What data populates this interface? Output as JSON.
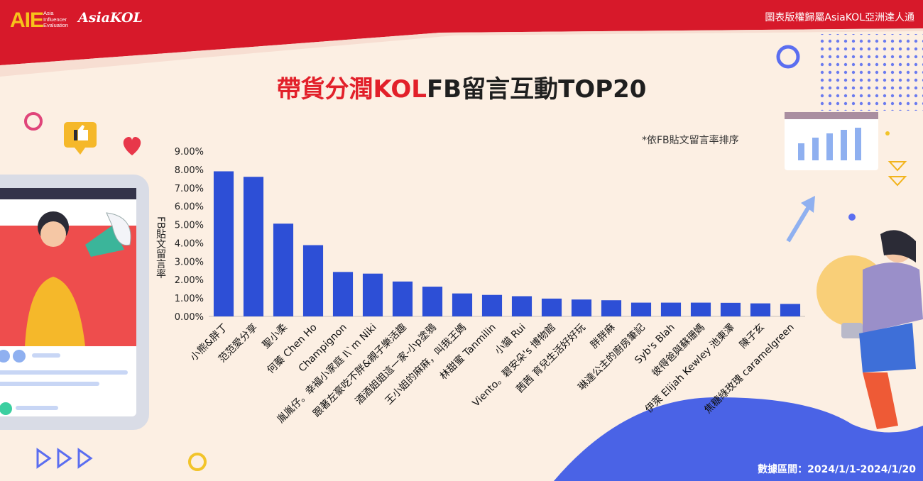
{
  "header": {
    "logo_aie": "AIE",
    "logo_aie_sub": [
      "Asia",
      "Influencer",
      "Evaluation"
    ],
    "logo_brand": "AsiaKOL",
    "copyright": "圖表版權歸屬AsiaKOL亞洲達人通"
  },
  "title": {
    "part1": "帶貨分潤KOL",
    "part2": "FB留言互動TOP20"
  },
  "note": "*依FB貼文留言率排序",
  "footer": {
    "data_range": "數據區間：2024/1/1-2024/1/20"
  },
  "colors": {
    "bar": "#2d4fd6",
    "header_red": "#d7192a",
    "header_dark": "#2a2a35",
    "title_red": "#e2202a",
    "background": "#fcefe3",
    "wave_blue": "#4a63e6"
  },
  "chart_data": {
    "type": "bar",
    "ylabel": "FB貼文留言率",
    "ylim": [
      0,
      9
    ],
    "yticks": [
      "0.00%",
      "1.00%",
      "2.00%",
      "3.00%",
      "4.00%",
      "5.00%",
      "6.00%",
      "7.00%",
      "8.00%",
      "9.00%"
    ],
    "grid": false,
    "categories": [
      "小熊&胖丁",
      "范范愛分享",
      "聖小柔",
      "何蓁 Chen Ho",
      "Champignon",
      "胤胤仔。幸福小家庭 I\\`m Niki",
      "跟著左豪吃不胖&親子樂活趣",
      "酒酒姐姐這一家-小p塗鴉",
      "王小姐的麻麻，叫我王媽",
      "林甜蜜 Tanmilin",
      "小貓 Rui",
      "Viento。碧安朵's 博物館",
      "茜茜 育兒生活好好玩",
      "胖胖麻",
      "琳達公主的廚房筆記",
      "Syb's Blah",
      "彼得爸與蘇珊媽",
      "伊萊 Elijah Kewley 池東澤",
      "陳子玄",
      "焦糖綠玫瑰 caramelgreen"
    ],
    "values": [
      7.9,
      7.6,
      5.05,
      3.88,
      2.42,
      2.33,
      1.9,
      1.62,
      1.25,
      1.17,
      1.1,
      0.97,
      0.92,
      0.88,
      0.75,
      0.75,
      0.75,
      0.74,
      0.71,
      0.68
    ]
  }
}
